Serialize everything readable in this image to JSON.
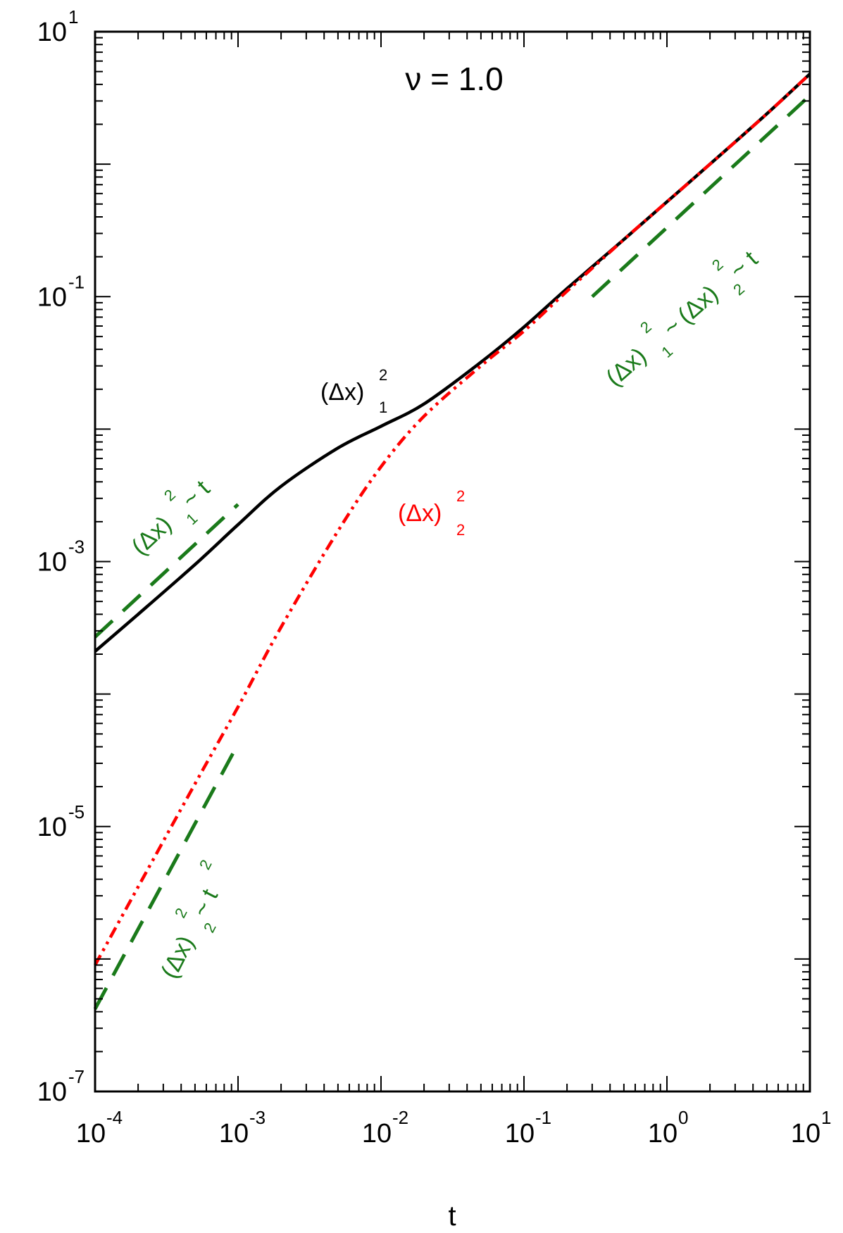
{
  "chart_data": {
    "type": "line",
    "title": "ν = 1.0",
    "xlabel": "t",
    "ylabel": "",
    "x_scale": "log",
    "y_scale": "log",
    "xlim": [
      0.0001,
      10
    ],
    "ylim": [
      1e-07,
      10
    ],
    "grid": false,
    "x_ticks": [
      {
        "base": "10",
        "exp": "-4"
      },
      {
        "base": "10",
        "exp": "-3"
      },
      {
        "base": "10",
        "exp": "-2"
      },
      {
        "base": "10",
        "exp": "-1"
      },
      {
        "base": "10",
        "exp": "0"
      },
      {
        "base": "10",
        "exp": "1"
      }
    ],
    "y_ticks": [
      {
        "base": "10",
        "exp": "-7"
      },
      {
        "base": "10",
        "exp": "-5"
      },
      {
        "base": "10",
        "exp": "-3"
      },
      {
        "base": "10",
        "exp": "-1"
      },
      {
        "base": "10",
        "exp": "1"
      }
    ],
    "series": [
      {
        "style": "solid",
        "color": "#000000",
        "x": [
          0.0001,
          0.0002,
          0.0005,
          0.001,
          0.002,
          0.005,
          0.01,
          0.02,
          0.05,
          0.1,
          0.2,
          0.5,
          1,
          2,
          5,
          10
        ],
        "y": [
          0.00021,
          0.0004,
          0.00095,
          0.0019,
          0.0037,
          0.0072,
          0.0105,
          0.0155,
          0.032,
          0.059,
          0.115,
          0.27,
          0.52,
          1.0,
          2.4,
          4.8
        ]
      },
      {
        "style": "dash-dot-dot",
        "color": "#ff0000",
        "x": [
          0.0001,
          0.0002,
          0.0005,
          0.001,
          0.002,
          0.005,
          0.01,
          0.02,
          0.05,
          0.1,
          0.2,
          0.5,
          1,
          2,
          5,
          10
        ],
        "y": [
          9e-07,
          3.5e-06,
          2.1e-05,
          8e-05,
          0.00032,
          0.0017,
          0.0052,
          0.0125,
          0.03,
          0.055,
          0.11,
          0.27,
          0.52,
          1.0,
          2.4,
          4.8
        ]
      },
      {
        "style": "long-dash",
        "color": "#1a7a1a",
        "x": [
          0.0001,
          0.001
        ],
        "y": [
          0.00027,
          0.0027
        ]
      },
      {
        "style": "long-dash",
        "color": "#1a7a1a",
        "x": [
          0.0001,
          0.001
        ],
        "y": [
          4.2e-07,
          4.2e-05
        ]
      },
      {
        "style": "long-dash",
        "color": "#1a7a1a",
        "x": [
          0.3,
          10
        ],
        "y": [
          0.1,
          3.3
        ]
      }
    ],
    "annotations": {
      "black_label": {
        "base": "(Δx)",
        "sup": "2",
        "sub": "1",
        "color": "#000000"
      },
      "red_label": {
        "base": "(Δx)",
        "sup": "2",
        "sub": "2",
        "color": "#ff0000"
      },
      "green_early": {
        "base": "(Δx)",
        "sup": "2",
        "sub": "1",
        "tail": " ~ t",
        "color": "#1a7a1a"
      },
      "green_t2": {
        "base": "(Δx)",
        "sup": "2",
        "sub": "2",
        "tail": " ~ t",
        "tail_sup": "2",
        "color": "#1a7a1a"
      },
      "green_late_a": {
        "base": "(Δx)",
        "sup": "2",
        "sub": "1",
        "tail": " ~ ",
        "color": "#1a7a1a"
      },
      "green_late_b": {
        "base": "(Δx)",
        "sup": "2",
        "sub": "2",
        "tail": " ~ t",
        "color": "#1a7a1a"
      }
    }
  }
}
